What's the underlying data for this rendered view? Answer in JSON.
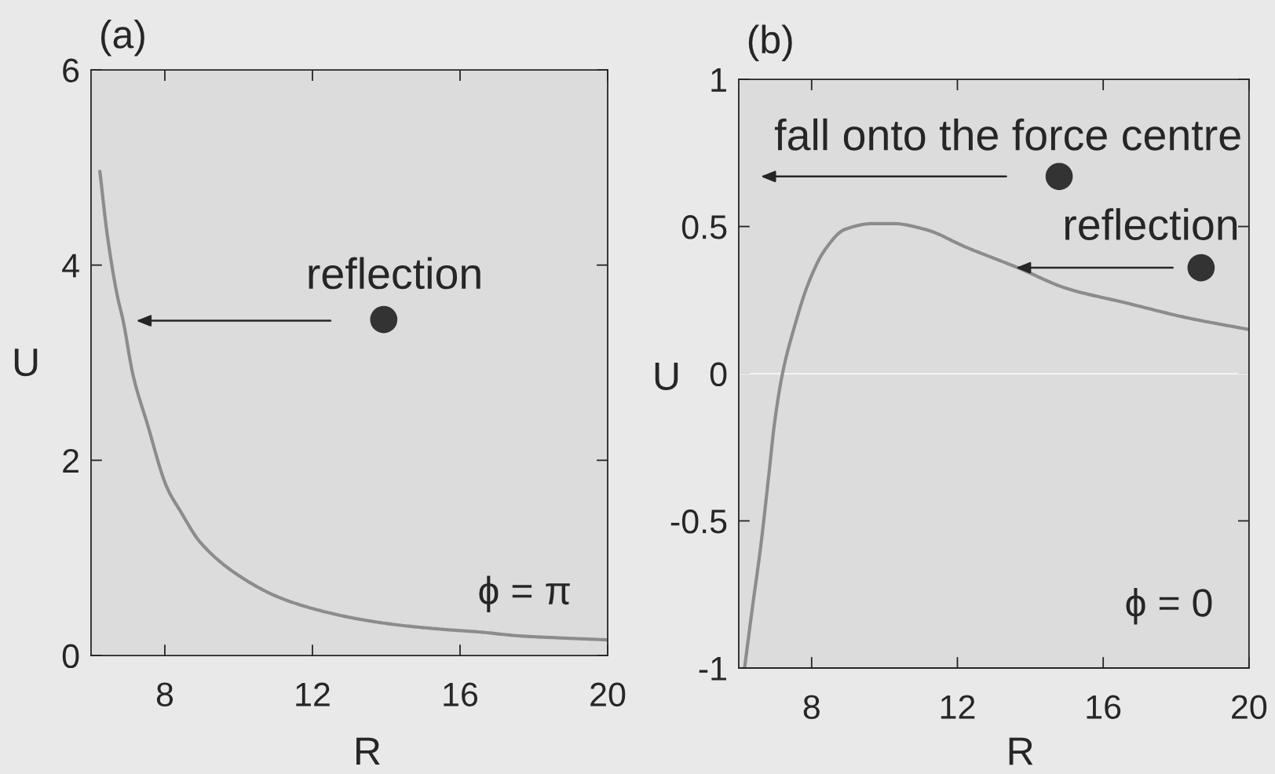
{
  "chart_data": [
    {
      "type": "line",
      "title": "(a)",
      "xlabel": "R",
      "ylabel": "U",
      "x": [
        6.24,
        6.44,
        6.71,
        6.87,
        7.14,
        7.52,
        8.06,
        8.42,
        8.96,
        10.04,
        11.13,
        12.21,
        13.3,
        14.38,
        15.47,
        16.55,
        17.64,
        18.72,
        20
      ],
      "series": [
        {
          "color": "#8c8c8c",
          "values": [
            4.96,
            4.31,
            3.69,
            3.43,
            2.87,
            2.38,
            1.72,
            1.48,
            1.16,
            0.81,
            0.59,
            0.46,
            0.37,
            0.31,
            0.27,
            0.24,
            0.2,
            0.18,
            0.16
          ]
        }
      ],
      "xlim": [
        6,
        20
      ],
      "ylim": [
        0,
        6
      ],
      "xticks": [
        8,
        12,
        16,
        20
      ],
      "yticks": [
        0,
        2,
        4,
        6
      ],
      "annotations": [
        "reflection",
        "ϕ = π"
      ]
    },
    {
      "type": "line",
      "title": "(b)",
      "xlabel": "R",
      "ylabel": "U",
      "x": [
        6.16,
        6.38,
        6.6,
        6.82,
        6.98,
        7.2,
        7.53,
        7.92,
        8.36,
        8.91,
        9.69,
        10.24,
        11.12,
        12.23,
        13.66,
        14.99,
        16.64,
        18.3,
        20
      ],
      "series": [
        {
          "color": "#8c8c8c",
          "values": [
            -1,
            -0.79,
            -0.59,
            -0.35,
            -0.17,
            0,
            0.16,
            0.31,
            0.42,
            0.49,
            0.51,
            0.51,
            0.49,
            0.43,
            0.36,
            0.29,
            0.24,
            0.19,
            0.15
          ]
        }
      ],
      "xlim": [
        6,
        20
      ],
      "ylim": [
        -1,
        1
      ],
      "xticks": [
        8,
        12,
        16,
        20
      ],
      "yticks": [
        -1,
        -0.5,
        0,
        0.5,
        1
      ],
      "ref_lines": [
        {
          "axis": "y",
          "value": 0,
          "color": "#f7f7f7"
        }
      ],
      "annotations": [
        "fall onto the force centre",
        {
          "text": "reflection",
          "x": 13.6,
          "y": 0.36
        },
        "ϕ = 0"
      ]
    }
  ]
}
